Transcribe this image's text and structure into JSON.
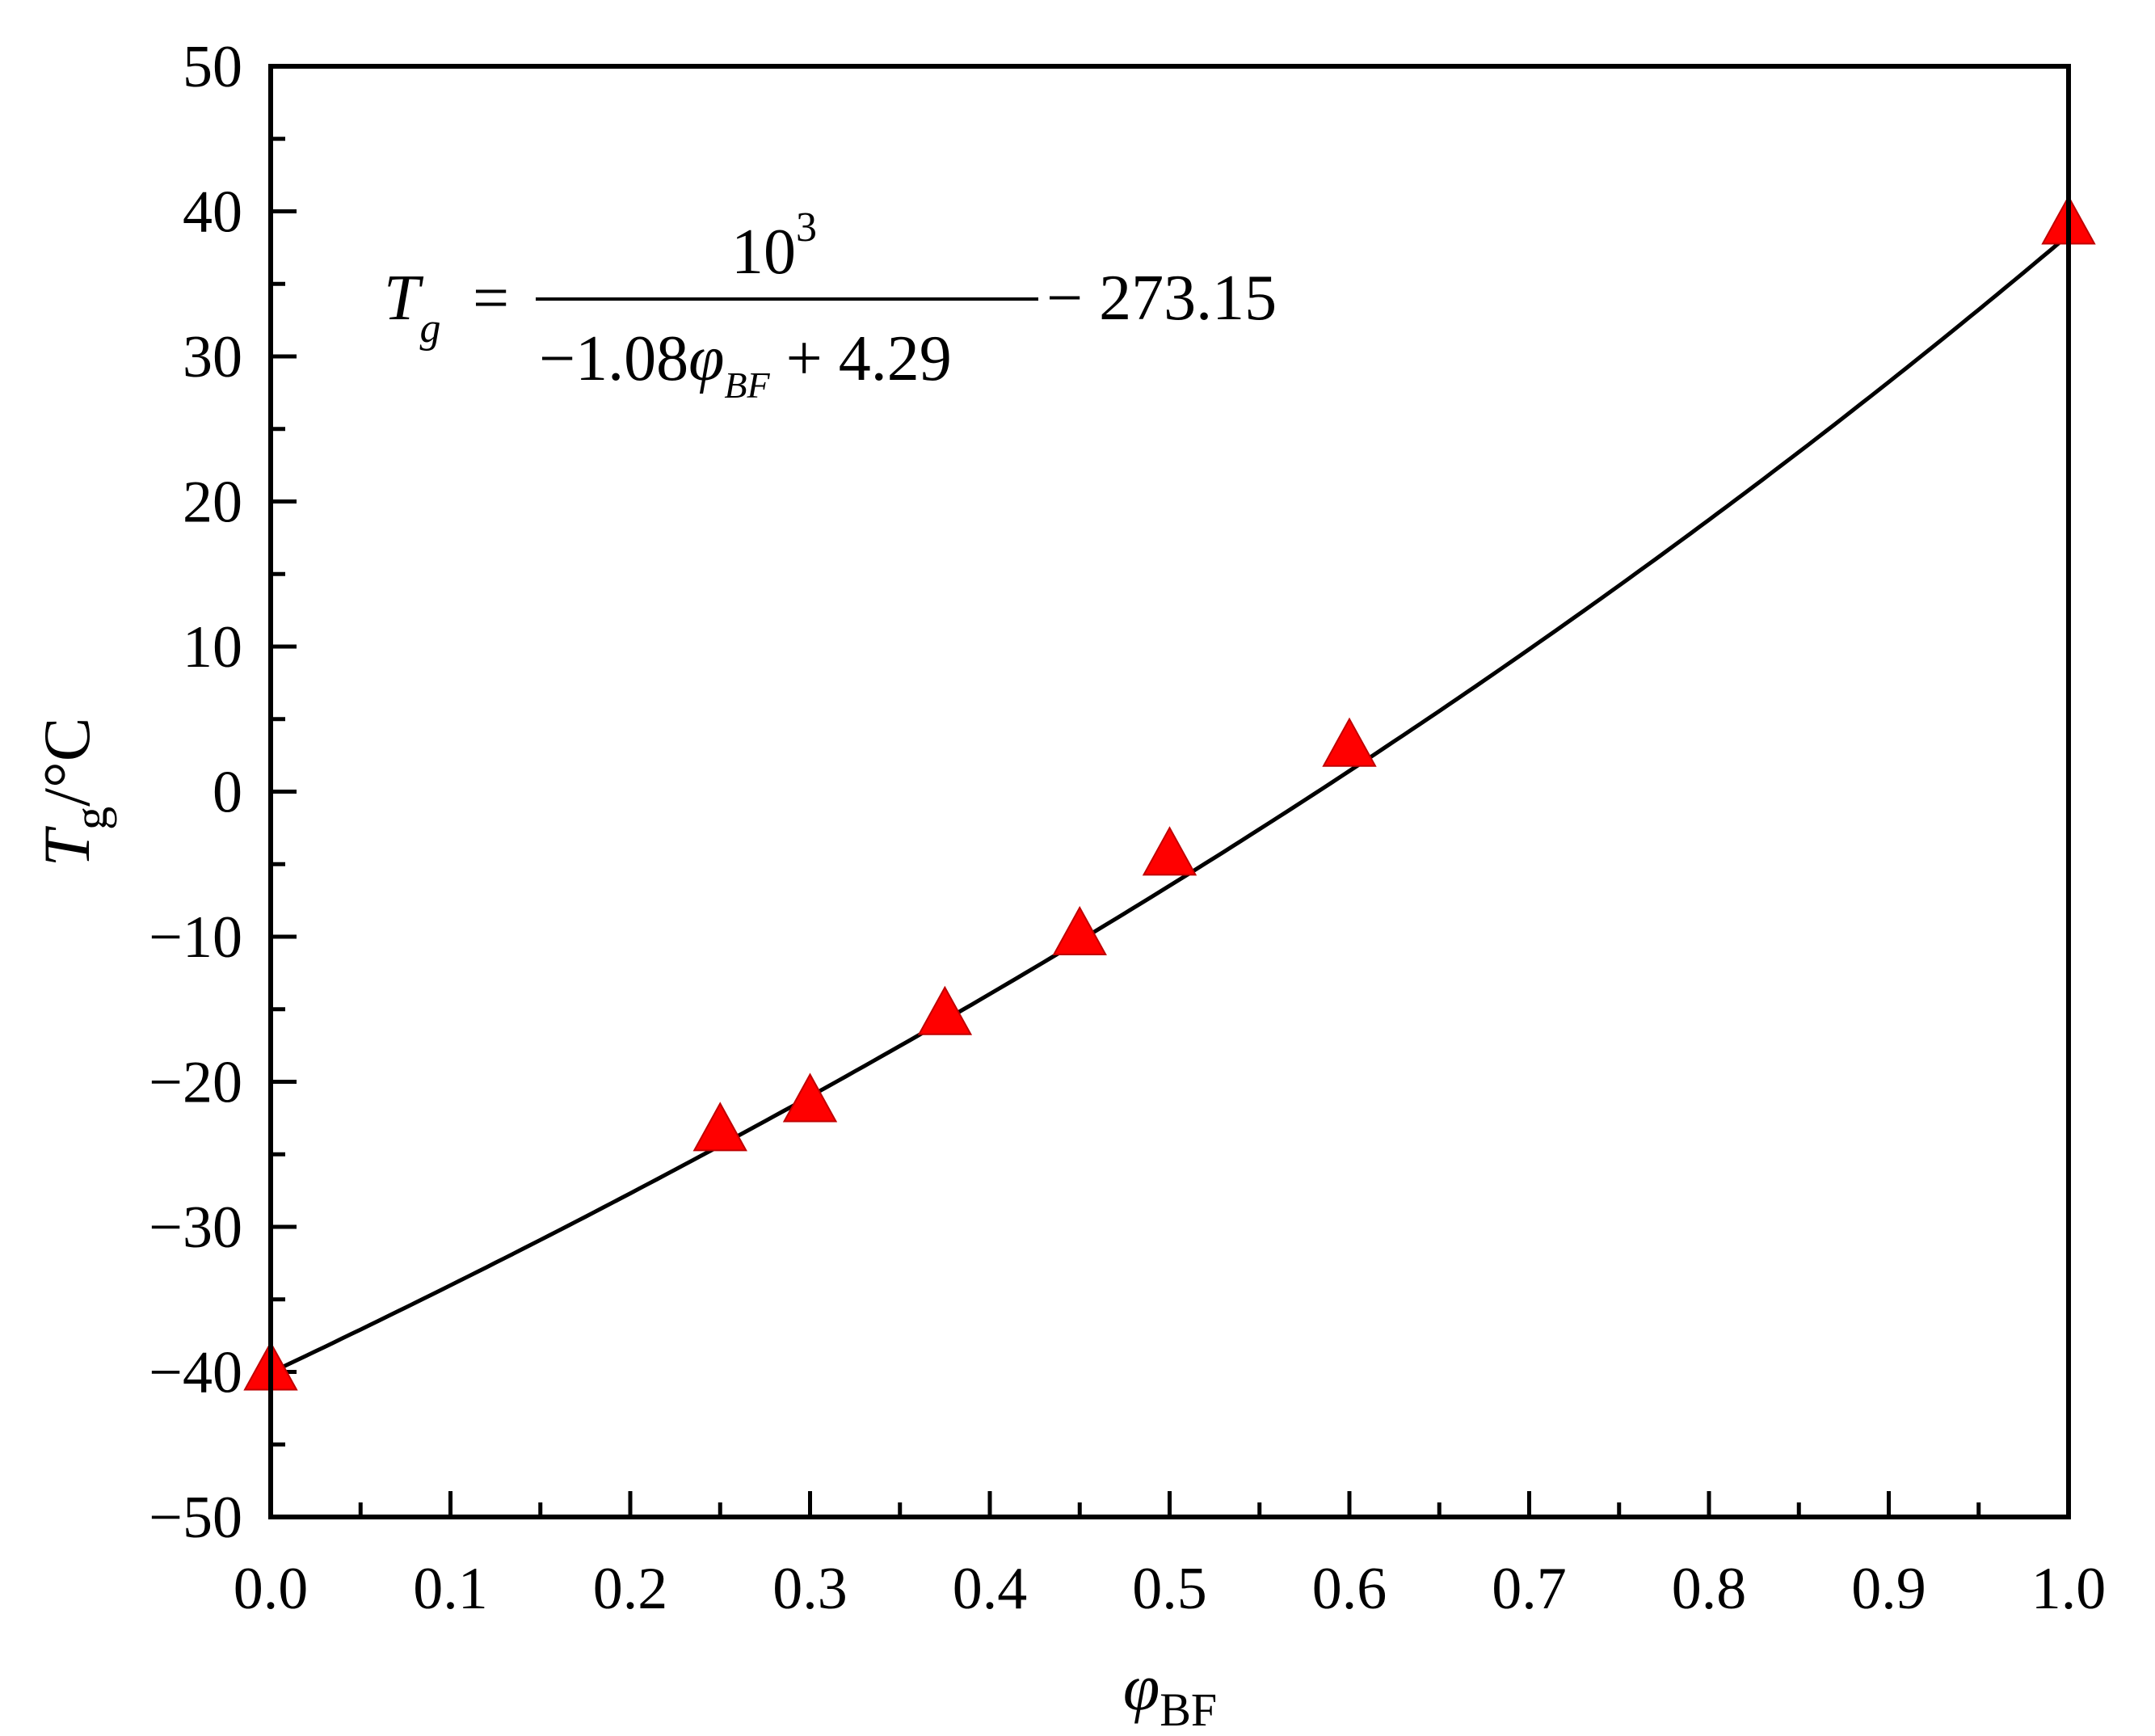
{
  "chart_data": {
    "type": "scatter",
    "title": "",
    "xlabel": {
      "symbol": "φ",
      "subscript": "BF"
    },
    "ylabel": {
      "symbol": "T",
      "subscript": "g",
      "unit": "/°C"
    },
    "xlim": [
      0.0,
      1.0
    ],
    "ylim": [
      -50,
      50
    ],
    "x_ticks": [
      "0.0",
      "0.1",
      "0.2",
      "0.3",
      "0.4",
      "0.5",
      "0.6",
      "0.7",
      "0.8",
      "0.9",
      "1.0"
    ],
    "y_ticks": [
      "50",
      "40",
      "30",
      "20",
      "10",
      "0",
      "−10",
      "−20",
      "−30",
      "−40",
      "−50"
    ],
    "grid": false,
    "series": [
      {
        "kind": "scatter",
        "marker": "triangle",
        "color": "#ff0000",
        "x": [
          0.0,
          0.25,
          0.3,
          0.375,
          0.45,
          0.5,
          0.6,
          1.0
        ],
        "y": [
          -40.0,
          -23.5,
          -21.5,
          -15.5,
          -10.0,
          -4.5,
          3.0,
          39.0
        ]
      },
      {
        "kind": "line",
        "color": "#000000",
        "fit": {
          "a": -1.08,
          "b": 4.29,
          "offset": -273.15
        }
      }
    ],
    "annotation": {
      "lhs_symbol": "T",
      "lhs_subscript": "g",
      "equals": "=",
      "numerator_base": "10",
      "numerator_exp": "3",
      "denominator_left": "−1.08",
      "denominator_symbol": "φ",
      "denominator_subscript": "BF",
      "denominator_right": "+ 4.29",
      "tail": "− 273.15"
    }
  }
}
